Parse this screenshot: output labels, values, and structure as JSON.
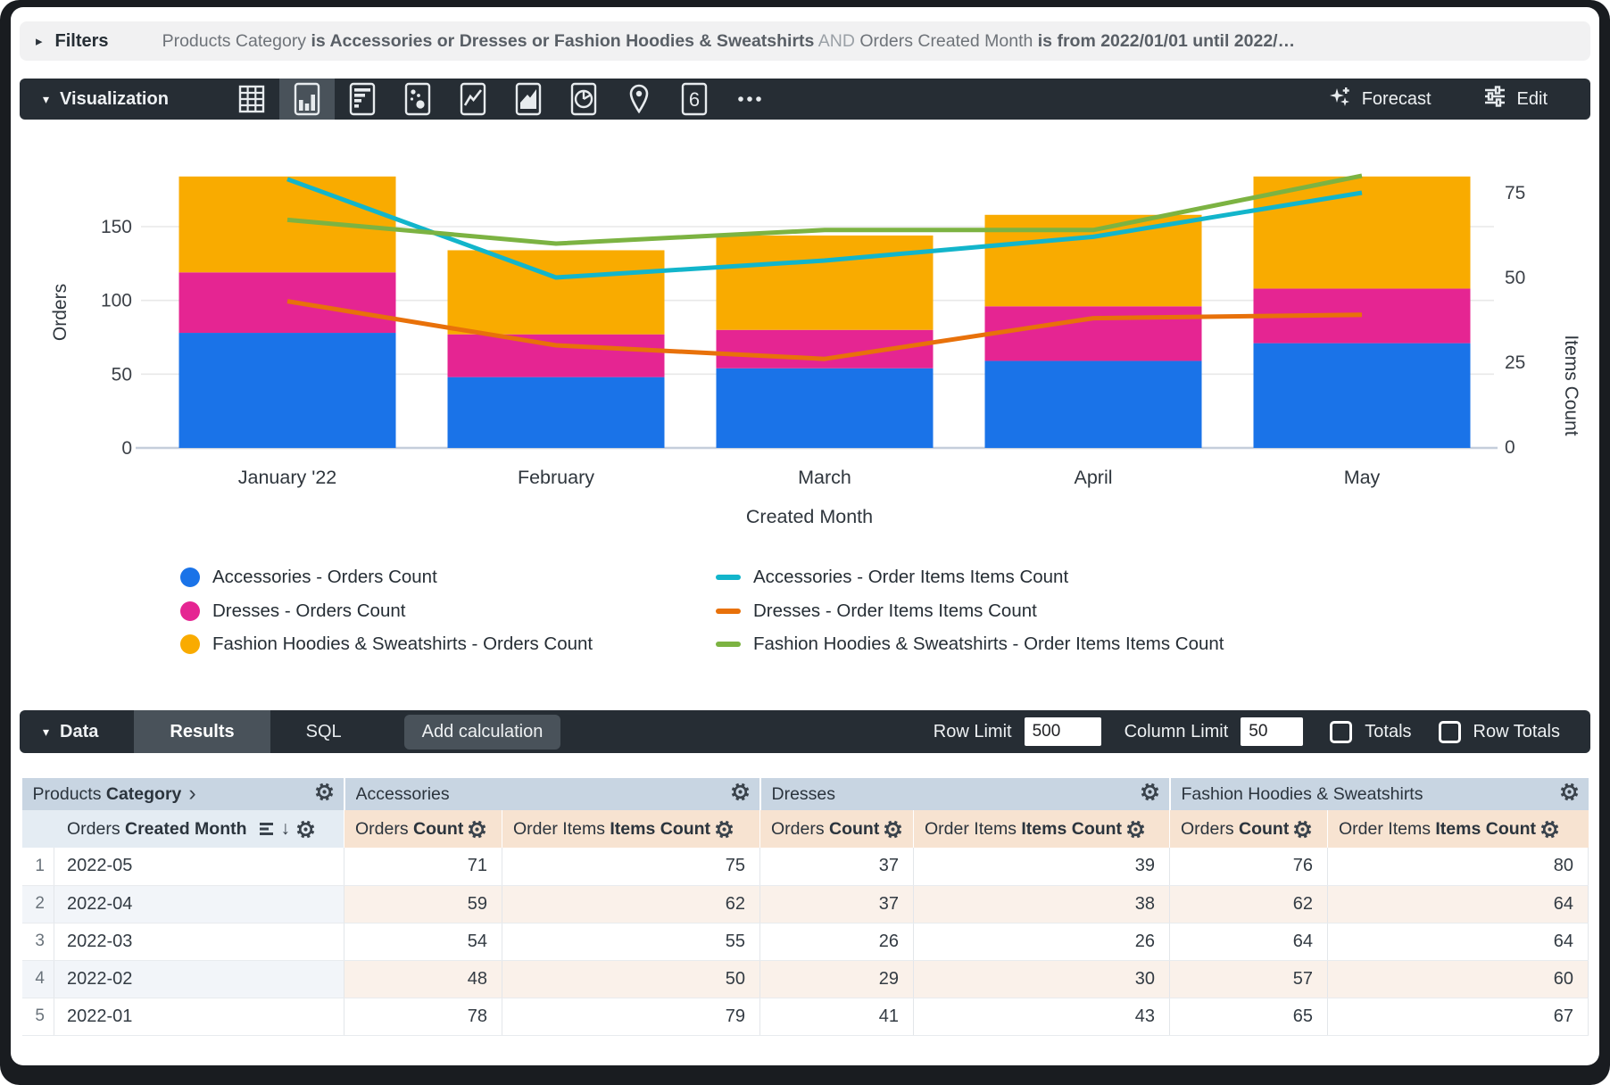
{
  "filters_bar": {
    "caret": "▸",
    "label": "Filters",
    "segments": [
      {
        "text": "Products Category ",
        "style": "normal"
      },
      {
        "text": "is Accessories or Dresses or Fashion Hoodies & Sweatshirts",
        "style": "bold"
      },
      {
        "text": " AND ",
        "style": "dim"
      },
      {
        "text": "Orders Created Month ",
        "style": "normal"
      },
      {
        "text": "is from 2022/01/01 until 2022/…",
        "style": "bold"
      }
    ]
  },
  "viz_toolbar": {
    "caret": "▾",
    "title": "Visualization",
    "chart_types": [
      {
        "name": "table",
        "active": false
      },
      {
        "name": "column-chart",
        "active": true
      },
      {
        "name": "bar-chart",
        "active": false
      },
      {
        "name": "scatter-plot",
        "active": false
      },
      {
        "name": "line-chart",
        "active": false
      },
      {
        "name": "area-chart",
        "active": false
      },
      {
        "name": "pie-chart",
        "active": false
      },
      {
        "name": "map",
        "active": false
      },
      {
        "name": "single-value",
        "active": false
      },
      {
        "name": "more-options",
        "active": false
      }
    ],
    "single_value_glyph": "6",
    "forecast_label": "Forecast",
    "edit_label": "Edit"
  },
  "chart_data": {
    "type": "combo_bar_line",
    "categories": [
      "January '22",
      "February",
      "March",
      "April",
      "May"
    ],
    "x_axis_title": "Created Month",
    "left_axis": {
      "title": "Orders",
      "ticks": [
        0,
        50,
        100,
        150
      ],
      "max": 190
    },
    "right_axis": {
      "title": "Items Count",
      "ticks": [
        0,
        25,
        50,
        75
      ],
      "max": 96
    },
    "bar_series": [
      {
        "name": "Accessories - Orders Count",
        "color": "#1A73E8",
        "values": [
          78,
          48,
          54,
          59,
          71
        ]
      },
      {
        "name": "Dresses - Orders Count",
        "color": "#E52592",
        "values": [
          41,
          29,
          26,
          37,
          37
        ]
      },
      {
        "name": "Fashion Hoodies & Sweatshirts - Orders Count",
        "color": "#F9AB00",
        "values": [
          65,
          57,
          64,
          62,
          76
        ]
      }
    ],
    "line_series": [
      {
        "name": "Accessories - Order Items Items Count",
        "color": "#12B5CB",
        "values": [
          79,
          50,
          55,
          62,
          75
        ]
      },
      {
        "name": "Dresses - Order Items Items Count",
        "color": "#E8710A",
        "values": [
          43,
          30,
          26,
          38,
          39
        ]
      },
      {
        "name": "Fashion Hoodies & Sweatshirts - Order Items Items Count",
        "color": "#7CB342",
        "values": [
          67,
          60,
          64,
          64,
          80
        ]
      }
    ],
    "legend_position": "bottom",
    "grid": true,
    "bar_stacked": true
  },
  "data_bar": {
    "caret": "▾",
    "title": "Data",
    "tabs": [
      {
        "label": "Results",
        "active": true
      },
      {
        "label": "SQL",
        "active": false
      }
    ],
    "add_calculation_label": "Add calculation",
    "row_limit": {
      "label": "Row Limit",
      "value": "500"
    },
    "column_limit": {
      "label": "Column Limit",
      "value": "50"
    },
    "totals": {
      "label": "Totals",
      "checked": false
    },
    "row_totals": {
      "label": "Row Totals",
      "checked": false
    }
  },
  "table": {
    "corner_header_parts": [
      {
        "t": "Products ",
        "b": false
      },
      {
        "t": "Category",
        "b": true
      }
    ],
    "corner_chevron": "›",
    "dim_header_parts": [
      {
        "t": "Orders ",
        "b": false
      },
      {
        "t": "Created Month",
        "b": true
      }
    ],
    "sort_arrow": "↓",
    "groups": [
      "Accessories",
      "Dresses",
      "Fashion Hoodies & Sweatshirts"
    ],
    "measure_header_parts": [
      [
        {
          "t": "Orders ",
          "b": false
        },
        {
          "t": "Count",
          "b": true
        }
      ],
      [
        {
          "t": "Order Items ",
          "b": false
        },
        {
          "t": "Items Count",
          "b": true
        }
      ]
    ],
    "rows": [
      {
        "n": "1",
        "month": "2022-05",
        "values": [
          71,
          75,
          37,
          39,
          76,
          80
        ]
      },
      {
        "n": "2",
        "month": "2022-04",
        "values": [
          59,
          62,
          37,
          38,
          62,
          64
        ]
      },
      {
        "n": "3",
        "month": "2022-03",
        "values": [
          54,
          55,
          26,
          26,
          64,
          64
        ]
      },
      {
        "n": "4",
        "month": "2022-02",
        "values": [
          48,
          50,
          29,
          30,
          57,
          60
        ]
      },
      {
        "n": "5",
        "month": "2022-01",
        "values": [
          78,
          79,
          41,
          43,
          65,
          67
        ]
      }
    ]
  }
}
